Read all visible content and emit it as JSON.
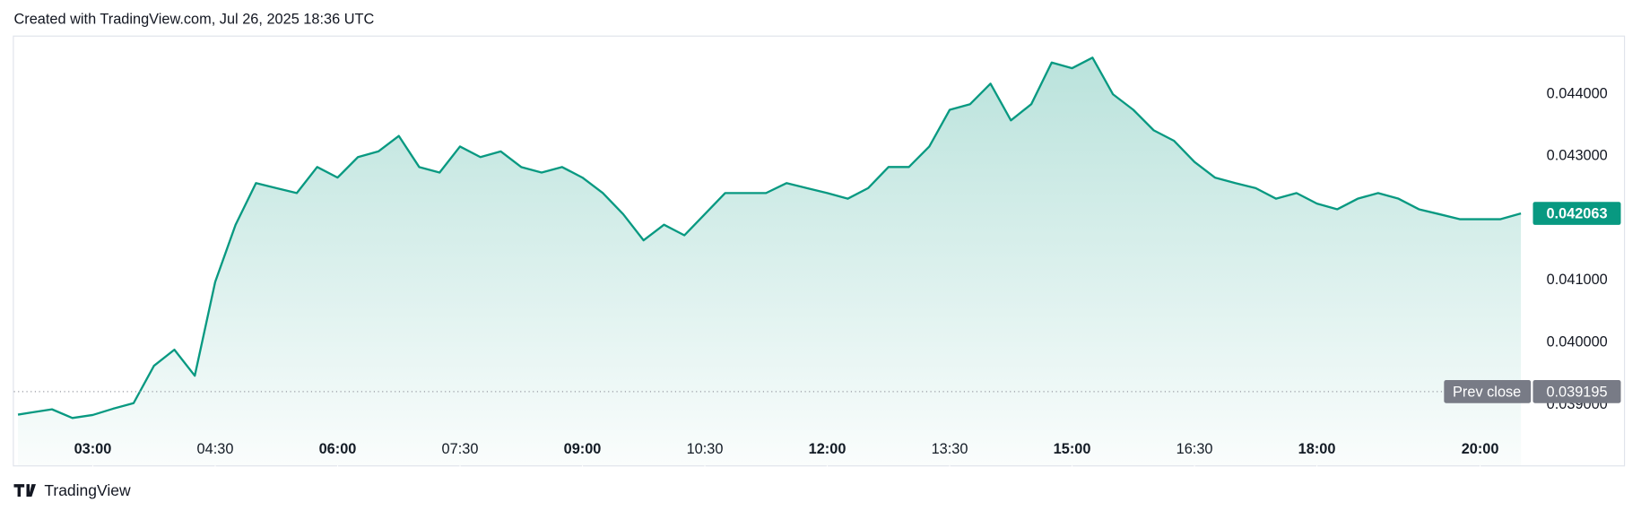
{
  "header": "Created with TradingView.com, Jul 26, 2025 18:36 UTC",
  "footer": "TradingView",
  "chart_data": {
    "type": "area",
    "color": "#089981",
    "x": [
      "02:05",
      "02:15",
      "02:30",
      "02:45",
      "03:00",
      "03:15",
      "03:30",
      "03:45",
      "04:00",
      "04:15",
      "04:30",
      "04:45",
      "05:00",
      "05:15",
      "05:30",
      "05:45",
      "06:00",
      "06:15",
      "06:30",
      "06:45",
      "07:00",
      "07:15",
      "07:30",
      "07:45",
      "08:00",
      "08:15",
      "08:30",
      "08:45",
      "09:00",
      "09:15",
      "09:30",
      "09:45",
      "10:00",
      "10:15",
      "10:30",
      "10:45",
      "11:00",
      "11:15",
      "11:30",
      "11:45",
      "12:00",
      "12:15",
      "12:30",
      "12:45",
      "13:00",
      "13:15",
      "13:30",
      "13:45",
      "14:00",
      "14:15",
      "14:30",
      "14:45",
      "15:00",
      "15:15",
      "15:30",
      "15:45",
      "16:00",
      "16:15",
      "16:30",
      "16:45",
      "17:00",
      "17:15",
      "17:30",
      "17:45",
      "18:00",
      "18:15",
      "18:30",
      "18:45",
      "19:00",
      "19:15",
      "19:30",
      "19:45",
      "20:00",
      "20:15",
      "20:30"
    ],
    "values": [
      0.038824,
      0.03886,
      0.03891,
      0.03877,
      0.03882,
      0.03892,
      0.03901,
      0.03961,
      0.03987,
      0.03945,
      0.04096,
      0.04188,
      0.04255,
      0.04247,
      0.04239,
      0.04281,
      0.04264,
      0.04297,
      0.04306,
      0.04331,
      0.04281,
      0.04272,
      0.04314,
      0.04297,
      0.04306,
      0.04281,
      0.04272,
      0.04281,
      0.04264,
      0.04239,
      0.04205,
      0.04163,
      0.04188,
      0.04171,
      0.04205,
      0.04239,
      0.04239,
      0.04239,
      0.04255,
      0.04247,
      0.04239,
      0.0423,
      0.04247,
      0.04281,
      0.04281,
      0.04314,
      0.04373,
      0.04382,
      0.04415,
      0.04356,
      0.04382,
      0.04449,
      0.0444,
      0.04457,
      0.04398,
      0.04373,
      0.0434,
      0.04323,
      0.04289,
      0.04264,
      0.04255,
      0.04247,
      0.0423,
      0.04239,
      0.04222,
      0.04213,
      0.0423,
      0.04239,
      0.0423,
      0.04213,
      0.04205,
      0.04197,
      0.04197,
      0.04197,
      0.042063
    ],
    "xlim": [
      "02:02",
      "20:35"
    ],
    "xticks": [
      "03:00",
      "04:30",
      "06:00",
      "07:30",
      "09:00",
      "10:30",
      "12:00",
      "13:30",
      "15:00",
      "16:30",
      "18:00",
      "20:00"
    ],
    "ylim": [
      0.038008,
      0.044908
    ],
    "yticks": [
      {
        "value": 0.039,
        "label": "0.039000"
      },
      {
        "value": 0.04,
        "label": "0.040000"
      },
      {
        "value": 0.041,
        "label": "0.041000"
      },
      {
        "value": 0.042,
        "label": "0.042000"
      },
      {
        "value": 0.043,
        "label": "0.043000"
      },
      {
        "value": 0.044,
        "label": "0.044000"
      }
    ],
    "last_price": {
      "value": 0.042063,
      "label": "0.042063"
    },
    "prev_close": {
      "name": "Prev close",
      "value": 0.039195,
      "label": "0.039195"
    }
  }
}
